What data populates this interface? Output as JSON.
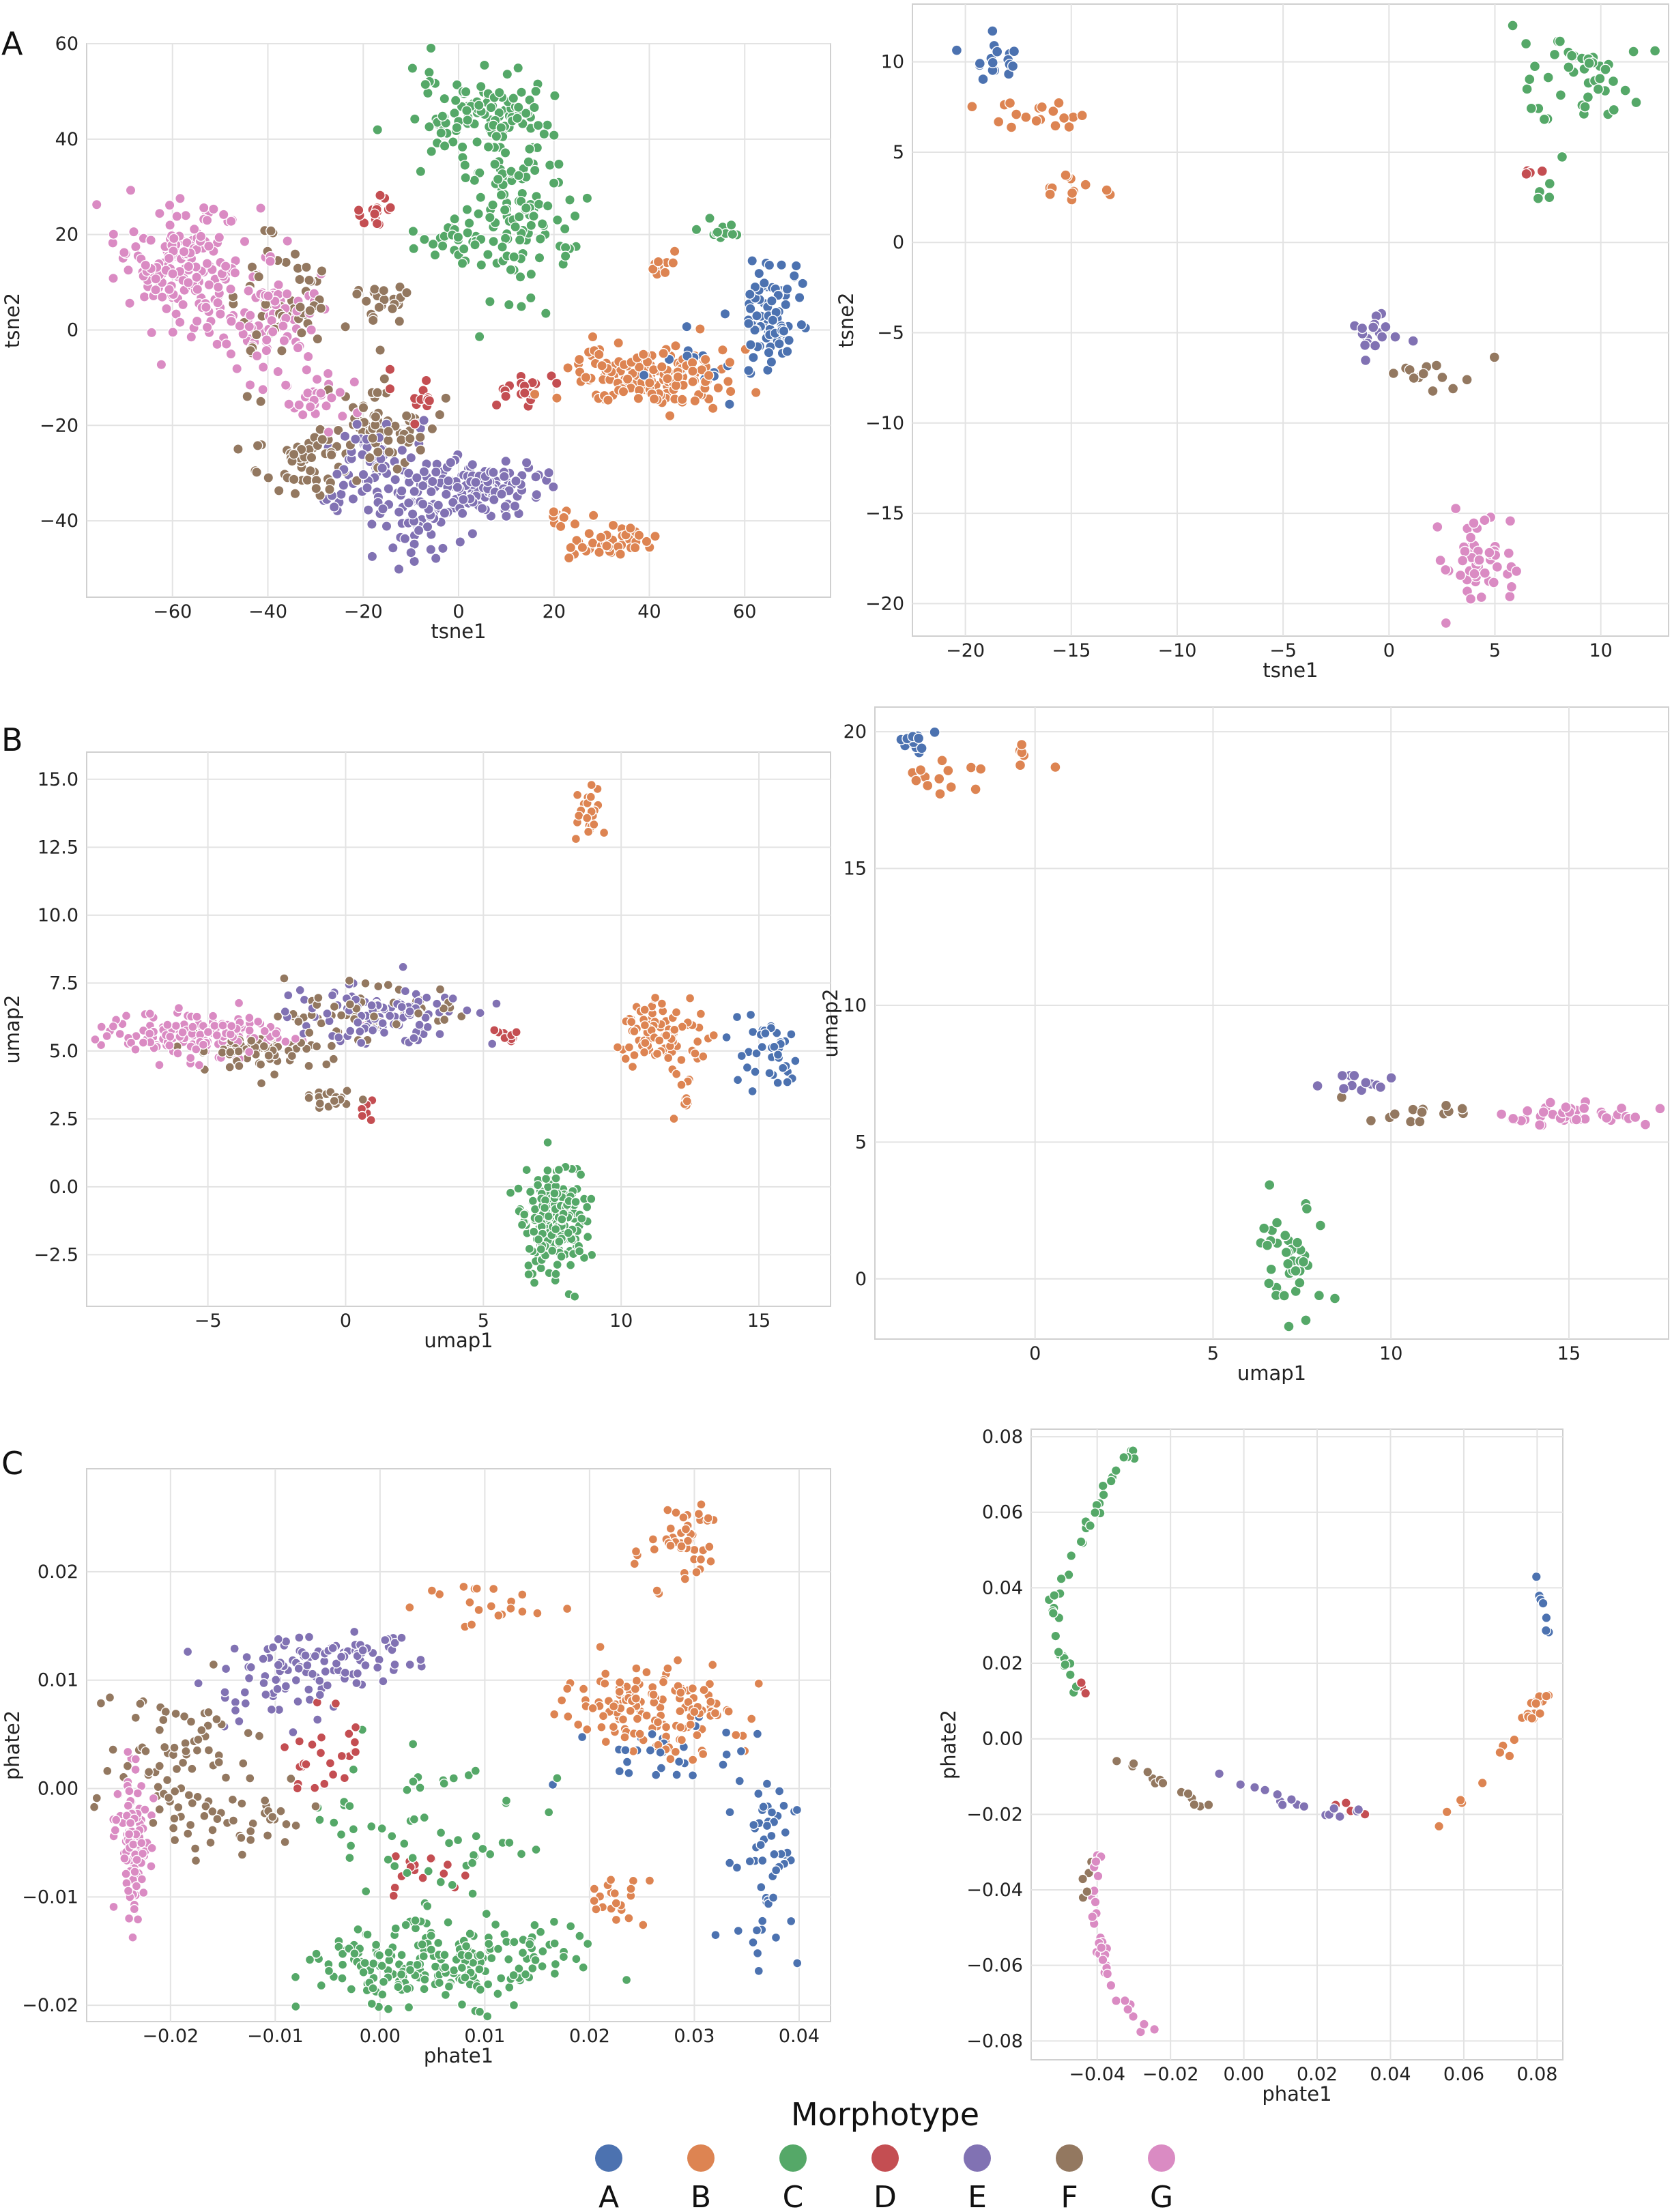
{
  "panel_labels": [
    "A",
    "B",
    "C"
  ],
  "legend": {
    "title": "Morphotype",
    "items": [
      {
        "label": "A",
        "color": "#4c72b0"
      },
      {
        "label": "B",
        "color": "#dd8452"
      },
      {
        "label": "C",
        "color": "#55a868"
      },
      {
        "label": "D",
        "color": "#c44e52"
      },
      {
        "label": "E",
        "color": "#8172b3"
      },
      {
        "label": "F",
        "color": "#937860"
      },
      {
        "label": "G",
        "color": "#da8bc3"
      }
    ]
  },
  "chart_data": [
    {
      "type": "scatter",
      "panel": "A",
      "position": "left",
      "xlabel": "tsne1",
      "ylabel": "tsne2",
      "xlim": [
        -78,
        78
      ],
      "ylim": [
        -56,
        60
      ],
      "xticks": [
        -60,
        -40,
        -20,
        0,
        20,
        40,
        60
      ],
      "yticks": [
        -40,
        -20,
        0,
        20,
        40,
        60
      ],
      "xtick_labels": [
        "−60",
        "−40",
        "−20",
        "0",
        "20",
        "40",
        "60"
      ],
      "ytick_labels": [
        "−40",
        "−20",
        "0",
        "20",
        "40",
        "60"
      ],
      "clusters": [
        {
          "series": "G",
          "cx": -58,
          "cy": 14,
          "sx": 7,
          "sy": 6,
          "n": 170
        },
        {
          "series": "G",
          "cx": -42,
          "cy": 2,
          "sx": 6,
          "sy": 6,
          "n": 90
        },
        {
          "series": "G",
          "cx": -30,
          "cy": -16,
          "sx": 5,
          "sy": 4,
          "n": 30
        },
        {
          "series": "F",
          "cx": -38,
          "cy": 6,
          "sx": 6,
          "sy": 7,
          "n": 60
        },
        {
          "series": "F",
          "cx": -32,
          "cy": -28,
          "sx": 5,
          "sy": 3,
          "n": 50
        },
        {
          "series": "F",
          "cx": -18,
          "cy": -20,
          "sx": 6,
          "sy": 5,
          "n": 70
        },
        {
          "series": "F",
          "cx": -17,
          "cy": 6,
          "sx": 4,
          "sy": 2,
          "n": 22
        },
        {
          "series": "E",
          "cx": -18,
          "cy": -30,
          "sx": 6,
          "sy": 6,
          "n": 80
        },
        {
          "series": "E",
          "cx": -8,
          "cy": -40,
          "sx": 4,
          "sy": 3,
          "n": 40
        },
        {
          "series": "E",
          "cx": 4,
          "cy": -33,
          "sx": 7,
          "sy": 3,
          "n": 130
        },
        {
          "series": "C",
          "cx": 5,
          "cy": 45,
          "sx": 7,
          "sy": 4,
          "n": 110
        },
        {
          "series": "C",
          "cx": 12,
          "cy": 25,
          "sx": 6,
          "sy": 9,
          "n": 120
        },
        {
          "series": "C",
          "cx": 0,
          "cy": 18,
          "sx": 4,
          "sy": 3,
          "n": 25
        },
        {
          "series": "C",
          "cx": 55,
          "cy": 21,
          "sx": 2,
          "sy": 1,
          "n": 12
        },
        {
          "series": "C",
          "cx": 23,
          "cy": 17,
          "sx": 1,
          "sy": 1,
          "n": 5
        },
        {
          "series": "D",
          "cx": -17,
          "cy": 26,
          "sx": 1.5,
          "sy": 1.5,
          "n": 15
        },
        {
          "series": "D",
          "cx": 14,
          "cy": -13,
          "sx": 3,
          "sy": 2,
          "n": 18
        },
        {
          "series": "D",
          "cx": -8,
          "cy": -13,
          "sx": 3,
          "sy": 3,
          "n": 12
        },
        {
          "series": "B",
          "cx": 40,
          "cy": -10,
          "sx": 8,
          "sy": 3,
          "n": 160
        },
        {
          "series": "B",
          "cx": 32,
          "cy": -45,
          "sx": 4,
          "sy": 2,
          "n": 40
        },
        {
          "series": "B",
          "cx": 22,
          "cy": -39,
          "sx": 2,
          "sy": 2,
          "n": 10
        },
        {
          "series": "B",
          "cx": 42,
          "cy": 13,
          "sx": 1.5,
          "sy": 2,
          "n": 10
        },
        {
          "series": "A",
          "cx": 66,
          "cy": 3,
          "sx": 3,
          "sy": 6,
          "n": 80
        },
        {
          "series": "A",
          "cx": 50,
          "cy": -8,
          "sx": 6,
          "sy": 4,
          "n": 15
        }
      ]
    },
    {
      "type": "scatter",
      "panel": "A",
      "position": "right",
      "xlabel": "tsne1",
      "ylabel": "tsne2",
      "xlim": [
        -22.5,
        13.2
      ],
      "ylim": [
        -21.8,
        13.2
      ],
      "xticks": [
        -20,
        -15,
        -10,
        -5,
        0,
        5,
        10
      ],
      "yticks": [
        -20,
        -15,
        -10,
        -5,
        0,
        5,
        10
      ],
      "xtick_labels": [
        "−20",
        "−15",
        "−10",
        "−5",
        "0",
        "5",
        "10"
      ],
      "ytick_labels": [
        "−20",
        "−15",
        "−10",
        "−5",
        "0",
        "5",
        "10"
      ],
      "clusters": [
        {
          "series": "A",
          "cx": -18.3,
          "cy": 10.2,
          "sx": 0.9,
          "sy": 0.6,
          "n": 18
        },
        {
          "series": "B",
          "cx": -16.5,
          "cy": 7.0,
          "sx": 1.2,
          "sy": 0.5,
          "n": 18
        },
        {
          "series": "B",
          "cx": -15.0,
          "cy": 3.0,
          "sx": 0.7,
          "sy": 0.5,
          "n": 12
        },
        {
          "series": "C",
          "cx": 9.0,
          "cy": 8.8,
          "sx": 1.5,
          "sy": 1.5,
          "n": 45
        },
        {
          "series": "C",
          "cx": 7.5,
          "cy": 3.0,
          "sx": 0.5,
          "sy": 1.0,
          "n": 5
        },
        {
          "series": "D",
          "cx": 6.8,
          "cy": 3.5,
          "sx": 0.3,
          "sy": 0.4,
          "n": 4
        },
        {
          "series": "E",
          "cx": -0.5,
          "cy": -4.8,
          "sx": 0.6,
          "sy": 0.8,
          "n": 18
        },
        {
          "series": "F",
          "cx": 2.0,
          "cy": -7.4,
          "sx": 1.2,
          "sy": 0.6,
          "n": 14
        },
        {
          "series": "G",
          "cx": 4.2,
          "cy": -17.5,
          "sx": 1.0,
          "sy": 1.5,
          "n": 50
        }
      ]
    },
    {
      "type": "scatter",
      "panel": "B",
      "position": "left",
      "xlabel": "umap1",
      "ylabel": "umap2",
      "xlim": [
        -9.4,
        17.6
      ],
      "ylim": [
        -4.4,
        16.0
      ],
      "xticks": [
        -5,
        0,
        5,
        10,
        15
      ],
      "yticks": [
        -2.5,
        0.0,
        2.5,
        5.0,
        7.5,
        10.0,
        12.5,
        15.0
      ],
      "xtick_labels": [
        "−5",
        "0",
        "5",
        "10",
        "15"
      ],
      "ytick_labels": [
        "−2.5",
        "0.0",
        "2.5",
        "5.0",
        "7.5",
        "10.0",
        "12.5",
        "15.0"
      ],
      "clusters": [
        {
          "series": "G",
          "cx": -5.5,
          "cy": 5.6,
          "sx": 1.6,
          "sy": 0.4,
          "n": 150
        },
        {
          "series": "F",
          "cx": -2.8,
          "cy": 5.0,
          "sx": 1.3,
          "sy": 0.4,
          "n": 70
        },
        {
          "series": "E",
          "cx": 1.5,
          "cy": 6.3,
          "sx": 1.6,
          "sy": 0.5,
          "n": 110
        },
        {
          "series": "F",
          "cx": 0.5,
          "cy": 6.5,
          "sx": 2.0,
          "sy": 0.5,
          "n": 60
        },
        {
          "series": "F",
          "cx": -0.6,
          "cy": 3.2,
          "sx": 0.6,
          "sy": 0.2,
          "n": 18
        },
        {
          "series": "C",
          "cx": 7.6,
          "cy": -1.2,
          "sx": 0.55,
          "sy": 1.1,
          "n": 200
        },
        {
          "series": "B",
          "cx": 8.8,
          "cy": 14.0,
          "sx": 0.25,
          "sy": 0.7,
          "n": 24
        },
        {
          "series": "B",
          "cx": 11.5,
          "cy": 5.6,
          "sx": 0.8,
          "sy": 0.5,
          "n": 90
        },
        {
          "series": "B",
          "cx": 12.2,
          "cy": 3.4,
          "sx": 0.3,
          "sy": 0.6,
          "n": 12
        },
        {
          "series": "A",
          "cx": 15.2,
          "cy": 5.0,
          "sx": 0.7,
          "sy": 0.8,
          "n": 40
        },
        {
          "series": "D",
          "cx": 6.0,
          "cy": 5.5,
          "sx": 0.5,
          "sy": 0.2,
          "n": 10
        },
        {
          "series": "D",
          "cx": 0.9,
          "cy": 2.8,
          "sx": 0.2,
          "sy": 0.2,
          "n": 6
        }
      ]
    },
    {
      "type": "scatter",
      "panel": "B",
      "position": "right",
      "xlabel": "umap1",
      "ylabel": "umap2",
      "xlim": [
        -4.5,
        17.8
      ],
      "ylim": [
        -2.2,
        20.9
      ],
      "xticks": [
        0,
        5,
        10,
        15
      ],
      "yticks": [
        0,
        5,
        10,
        15,
        20
      ],
      "xtick_labels": [
        "0",
        "5",
        "10",
        "15"
      ],
      "ytick_labels": [
        "0",
        "5",
        "10",
        "15",
        "20"
      ],
      "clusters": [
        {
          "series": "A",
          "cx": -3.5,
          "cy": 19.6,
          "sx": 0.3,
          "sy": 0.2,
          "n": 14
        },
        {
          "series": "B",
          "cx": -2.0,
          "cy": 18.6,
          "sx": 1.2,
          "sy": 0.4,
          "n": 20
        },
        {
          "series": "C",
          "cx": 7.3,
          "cy": 1.0,
          "sx": 0.5,
          "sy": 1.0,
          "n": 40
        },
        {
          "series": "E",
          "cx": 8.8,
          "cy": 7.2,
          "sx": 0.4,
          "sy": 0.2,
          "n": 12
        },
        {
          "series": "F",
          "cx": 10.5,
          "cy": 6.0,
          "sx": 0.8,
          "sy": 0.2,
          "n": 14
        },
        {
          "series": "G",
          "cx": 15.2,
          "cy": 6.0,
          "sx": 1.0,
          "sy": 0.2,
          "n": 45
        }
      ]
    },
    {
      "type": "scatter",
      "panel": "C",
      "position": "left",
      "xlabel": "phate1",
      "ylabel": "phate2",
      "xlim": [
        -0.028,
        0.043
      ],
      "ylim": [
        -0.0215,
        0.0295
      ],
      "xticks": [
        -0.02,
        -0.01,
        0.0,
        0.01,
        0.02,
        0.03,
        0.04
      ],
      "yticks": [
        -0.02,
        -0.01,
        0.0,
        0.01,
        0.02
      ],
      "xtick_labels": [
        "−0.02",
        "−0.01",
        "0.00",
        "0.01",
        "0.02",
        "0.03",
        "0.04"
      ],
      "ytick_labels": [
        "−0.02",
        "−0.01",
        "0.00",
        "0.01",
        "0.02"
      ],
      "clusters": [
        {
          "series": "G",
          "cx": -0.0235,
          "cy": -0.005,
          "sx": 0.0008,
          "sy": 0.003,
          "n": 100
        },
        {
          "series": "F",
          "cx": -0.019,
          "cy": 0.002,
          "sx": 0.003,
          "sy": 0.004,
          "n": 80
        },
        {
          "series": "F",
          "cx": -0.012,
          "cy": -0.003,
          "sx": 0.003,
          "sy": 0.002,
          "n": 30
        },
        {
          "series": "E",
          "cx": -0.01,
          "cy": 0.01,
          "sx": 0.004,
          "sy": 0.002,
          "n": 60
        },
        {
          "series": "E",
          "cx": -0.004,
          "cy": 0.012,
          "sx": 0.004,
          "sy": 0.001,
          "n": 60
        },
        {
          "series": "D",
          "cx": -0.005,
          "cy": 0.003,
          "sx": 0.002,
          "sy": 0.002,
          "n": 25
        },
        {
          "series": "C",
          "cx": 0.006,
          "cy": -0.016,
          "sx": 0.006,
          "sy": 0.002,
          "n": 220
        },
        {
          "series": "C",
          "cx": 0.004,
          "cy": -0.004,
          "sx": 0.006,
          "sy": 0.005,
          "n": 60
        },
        {
          "series": "D",
          "cx": 0.004,
          "cy": -0.008,
          "sx": 0.002,
          "sy": 0.001,
          "n": 15
        },
        {
          "series": "B",
          "cx": 0.026,
          "cy": 0.007,
          "sx": 0.004,
          "sy": 0.002,
          "n": 140
        },
        {
          "series": "B",
          "cx": 0.028,
          "cy": 0.022,
          "sx": 0.002,
          "sy": 0.002,
          "n": 45
        },
        {
          "series": "B",
          "cx": 0.01,
          "cy": 0.017,
          "sx": 0.003,
          "sy": 0.001,
          "n": 20
        },
        {
          "series": "B",
          "cx": 0.023,
          "cy": -0.01,
          "sx": 0.002,
          "sy": 0.001,
          "n": 20
        },
        {
          "series": "A",
          "cx": 0.037,
          "cy": -0.006,
          "sx": 0.0015,
          "sy": 0.005,
          "n": 55
        },
        {
          "series": "A",
          "cx": 0.026,
          "cy": 0.003,
          "sx": 0.004,
          "sy": 0.0015,
          "n": 30
        }
      ]
    },
    {
      "type": "scatter",
      "panel": "C",
      "position": "right",
      "xlabel": "phate1",
      "ylabel": "phate2",
      "xlim": [
        -0.058,
        0.087
      ],
      "ylim": [
        -0.085,
        0.082
      ],
      "xticks": [
        -0.04,
        -0.02,
        0.0,
        0.02,
        0.04,
        0.06,
        0.08
      ],
      "yticks": [
        -0.08,
        -0.06,
        -0.04,
        -0.02,
        0.0,
        0.02,
        0.04,
        0.06,
        0.08
      ],
      "xtick_labels": [
        "−0.04",
        "−0.02",
        "0.00",
        "0.02",
        "0.04",
        "0.06",
        "0.08"
      ],
      "ytick_labels": [
        "−0.08",
        "−0.06",
        "−0.04",
        "−0.02",
        "0.00",
        "0.02",
        "0.04",
        "0.06",
        "0.08"
      ],
      "arcs": [
        {
          "series": "C",
          "points": [
            [
              -0.028,
              0.078
            ],
            [
              -0.038,
              0.066
            ],
            [
              -0.046,
              0.05
            ],
            [
              -0.052,
              0.035
            ],
            [
              -0.05,
              0.022
            ],
            [
              -0.045,
              0.012
            ]
          ],
          "n": 40
        },
        {
          "series": "D",
          "points": [
            [
              -0.047,
              0.016
            ],
            [
              -0.043,
              0.012
            ]
          ],
          "n": 4
        },
        {
          "series": "G",
          "points": [
            [
              -0.04,
              -0.03
            ],
            [
              -0.041,
              -0.05
            ],
            [
              -0.035,
              -0.068
            ],
            [
              -0.023,
              -0.079
            ]
          ],
          "n": 35
        },
        {
          "series": "F",
          "points": [
            [
              -0.042,
              -0.03
            ],
            [
              -0.043,
              -0.042
            ]
          ],
          "n": 6
        },
        {
          "series": "F",
          "points": [
            [
              -0.035,
              -0.005
            ],
            [
              -0.02,
              -0.012
            ],
            [
              -0.01,
              -0.018
            ]
          ],
          "n": 14
        },
        {
          "series": "E",
          "points": [
            [
              -0.008,
              -0.008
            ],
            [
              0.01,
              -0.016
            ],
            [
              0.033,
              -0.022
            ]
          ],
          "n": 16
        },
        {
          "series": "D",
          "points": [
            [
              0.02,
              -0.018
            ],
            [
              0.036,
              -0.02
            ]
          ],
          "n": 4
        },
        {
          "series": "B",
          "points": [
            [
              0.052,
              -0.023
            ],
            [
              0.065,
              -0.01
            ],
            [
              0.078,
              0.005
            ],
            [
              0.082,
              0.013
            ]
          ],
          "n": 24
        },
        {
          "series": "A",
          "points": [
            [
              0.08,
              0.043
            ],
            [
              0.082,
              0.032
            ],
            [
              0.082,
              0.027
            ]
          ],
          "n": 8
        }
      ]
    }
  ]
}
